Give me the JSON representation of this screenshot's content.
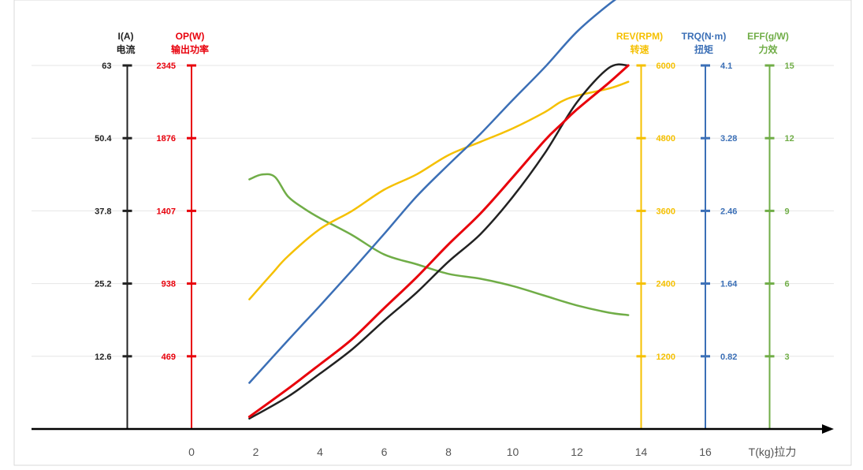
{
  "chart_data": {
    "type": "line",
    "colors": {
      "current": "#222222",
      "power": "#e8000b",
      "rev": "#f5c000",
      "torque": "#3b6fb6",
      "eff": "#70ad47",
      "grid": "#e6e6e6",
      "axis": "#000000"
    },
    "x_axis": {
      "label": "T(kg)拉力",
      "ticks": [
        0,
        2,
        4,
        6,
        8,
        10,
        12,
        14,
        16
      ],
      "range": [
        -2,
        18
      ]
    },
    "y_axes": [
      {
        "key": "current",
        "title_en": "I(A)",
        "title_cn": "电流",
        "x_position": -2,
        "ticks": [
          12.6,
          25.2,
          37.8,
          50.4,
          63
        ],
        "tick_labels": [
          "12.6",
          "25.2",
          "37.8",
          "50.4",
          "63"
        ],
        "max": 63
      },
      {
        "key": "power",
        "title_en": "OP(W)",
        "title_cn": "输出功率",
        "x_position": 0,
        "ticks": [
          469,
          938,
          1407,
          1876,
          2345
        ],
        "tick_labels": [
          "469",
          "938",
          "1407",
          "1876",
          "2345"
        ],
        "max": 2345
      },
      {
        "key": "rev",
        "title_en": "REV(RPM)",
        "title_cn": "转速",
        "x_position": 14,
        "ticks": [
          1200,
          2400,
          3600,
          4800,
          6000
        ],
        "tick_labels": [
          "1200",
          "2400",
          "3600",
          "4800",
          "6000"
        ],
        "max": 6000
      },
      {
        "key": "torque",
        "title_en": "TRQ(N·m)",
        "title_cn": "扭矩",
        "x_position": 16,
        "ticks": [
          0.82,
          1.64,
          2.46,
          3.28,
          4.1
        ],
        "tick_labels": [
          "0.82",
          "1.64",
          "2.46",
          "3.28",
          "4.1"
        ],
        "max": 4.1
      },
      {
        "key": "eff",
        "title_en": "EFF(g/W)",
        "title_cn": "力效",
        "x_position": 18,
        "ticks": [
          3,
          6,
          9,
          12,
          15
        ],
        "tick_labels": [
          "3",
          "6",
          "9",
          "12",
          "15"
        ],
        "max": 15
      }
    ],
    "series": [
      {
        "key": "current",
        "axis": "current",
        "x": [
          1.8,
          3,
          4,
          5,
          6,
          7,
          8,
          9,
          10,
          11,
          12,
          13,
          13.6
        ],
        "y": [
          1.8,
          5.6,
          9.6,
          13.8,
          18.8,
          23.6,
          29.0,
          33.8,
          40.2,
          47.8,
          56.6,
          62.6,
          63
        ]
      },
      {
        "key": "power",
        "axis": "power",
        "x": [
          1.8,
          3,
          4,
          5,
          6,
          7,
          8,
          9,
          10,
          11,
          11.5,
          12,
          13,
          13.6
        ],
        "y": [
          79,
          259,
          417,
          580,
          780,
          977,
          1191,
          1391,
          1623,
          1862,
          1963,
          2061,
          2234,
          2345
        ]
      },
      {
        "key": "rev",
        "axis": "rev",
        "x": [
          1.8,
          2.5,
          3,
          4,
          5,
          6,
          7,
          8,
          9,
          10,
          11,
          11.5,
          12,
          13,
          13.6
        ],
        "y": [
          2140,
          2560,
          2850,
          3300,
          3600,
          3950,
          4200,
          4520,
          4740,
          4960,
          5230,
          5400,
          5500,
          5620,
          5730
        ]
      },
      {
        "key": "torque",
        "axis": "torque",
        "x": [
          1.8,
          3,
          4,
          5,
          6,
          7,
          8,
          9,
          10,
          11,
          12,
          13,
          13.6
        ],
        "y": [
          0.52,
          1.0,
          1.39,
          1.79,
          2.2,
          2.62,
          2.98,
          3.33,
          3.71,
          4.08,
          4.48,
          4.79,
          4.94
        ]
      },
      {
        "key": "eff",
        "axis": "eff",
        "x": [
          1.8,
          2.2,
          2.6,
          3,
          3.5,
          4,
          5,
          6,
          7,
          8,
          9,
          10,
          11,
          12,
          13,
          13.6
        ],
        "y": [
          10.3,
          10.5,
          10.4,
          9.6,
          9.1,
          8.7,
          8.0,
          7.2,
          6.8,
          6.4,
          6.2,
          5.9,
          5.5,
          5.1,
          4.8,
          4.7
        ]
      }
    ]
  }
}
